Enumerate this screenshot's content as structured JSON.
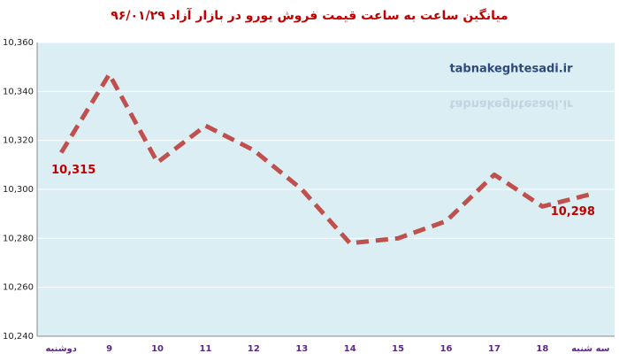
{
  "chart_data": {
    "type": "line",
    "title": "میانگین ساعت به ساعت قیمت فروش یورو در بازار آزاد ۹۶/۰۱/۲۹",
    "watermark": "tabnakeghtesadi.ir",
    "categories": [
      "دوشنبه",
      "9",
      "10",
      "11",
      "12",
      "13",
      "14",
      "15",
      "16",
      "17",
      "18",
      "سه شنبه"
    ],
    "values": [
      10315,
      10347,
      10311,
      10326,
      10316,
      10300,
      10278,
      10280,
      10287,
      10306,
      10293,
      10298
    ],
    "value_labels": [
      "10,315",
      null,
      null,
      null,
      null,
      null,
      null,
      null,
      null,
      null,
      null,
      "10,298"
    ],
    "color": "#c0504d",
    "ylim": [
      10240,
      10360
    ],
    "yticks": [
      {
        "value": 10240,
        "label": "10,240"
      },
      {
        "value": 10260,
        "label": "10,260"
      },
      {
        "value": 10280,
        "label": "10,280"
      },
      {
        "value": 10300,
        "label": "10,300"
      },
      {
        "value": 10320,
        "label": "10,320"
      },
      {
        "value": 10340,
        "label": "10,340"
      },
      {
        "value": 10360,
        "label": "10,360"
      }
    ],
    "grid": true
  }
}
